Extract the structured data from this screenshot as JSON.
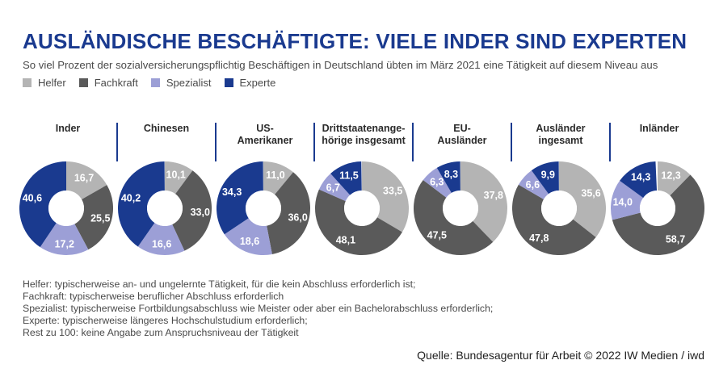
{
  "header": {
    "title": "AUSLÄNDISCHE BESCHÄFTIGTE: VIELE INDER SIND EXPERTEN",
    "subtitle": "So viel Prozent der sozialversicherungspflichtig Beschäftigen in Deutschland übten im März 2021 eine Tätigkeit auf diesem Niveau aus"
  },
  "colors": {
    "Helfer": "#b4b4b4",
    "Fachkraft": "#5a5a5a",
    "Spezialist": "#9c9fd6",
    "Experte": "#1a3a8f",
    "title": "#1a3a8f"
  },
  "chart_data": {
    "type": "pie",
    "variant": "donut",
    "title": "AUSLÄNDISCHE BESCHÄFTIGTE: VIELE INDER SIND EXPERTEN",
    "legend": [
      "Helfer",
      "Fachkraft",
      "Spezialist",
      "Experte"
    ],
    "legend_position": "top-left",
    "decimal_separator": ",",
    "groups": [
      {
        "label": "Inder",
        "values": {
          "Helfer": 16.7,
          "Fachkraft": 25.5,
          "Spezialist": 17.2,
          "Experte": 40.6
        }
      },
      {
        "label": "Chinesen",
        "values": {
          "Helfer": 10.1,
          "Fachkraft": 33.0,
          "Spezialist": 16.6,
          "Experte": 40.2
        }
      },
      {
        "label": "US-\nAmerikaner",
        "values": {
          "Helfer": 11.0,
          "Fachkraft": 36.0,
          "Spezialist": 18.6,
          "Experte": 34.3
        }
      },
      {
        "label": "Drittstaatenange-\nhörige insgesamt",
        "values": {
          "Helfer": 33.5,
          "Fachkraft": 48.1,
          "Spezialist": 6.7,
          "Experte": 11.5
        }
      },
      {
        "label": "EU-\nAusländer",
        "values": {
          "Helfer": 37.8,
          "Fachkraft": 47.5,
          "Spezialist": 6.3,
          "Experte": 8.3
        }
      },
      {
        "label": "Ausländer\ningesamt",
        "values": {
          "Helfer": 35.6,
          "Fachkraft": 47.8,
          "Spezialist": 6.6,
          "Experte": 9.9
        }
      },
      {
        "label": "Inländer",
        "values": {
          "Helfer": 12.3,
          "Fachkraft": 58.7,
          "Spezialist": 14.0,
          "Experte": 14.3
        }
      }
    ]
  },
  "footnotes": [
    "Helfer: typischerweise an- und ungelernte Tätigkeit, für die kein Abschluss erforderlich ist;",
    "Fachkraft: typischerweise beruflicher Abschluss erforderlich",
    "Spezialist: typischerweise Fortbildungsabschluss wie Meister oder aber ein Bachelorabschluss erforderlich;",
    "Experte: typischerweise längeres Hochschulstudium erforderlich;",
    "Rest zu 100: keine Angabe zum Anspruchsniveau der Tätigkeit"
  ],
  "source": "Quelle: Bundesagentur für Arbeit © 2022 IW Medien / iwd"
}
